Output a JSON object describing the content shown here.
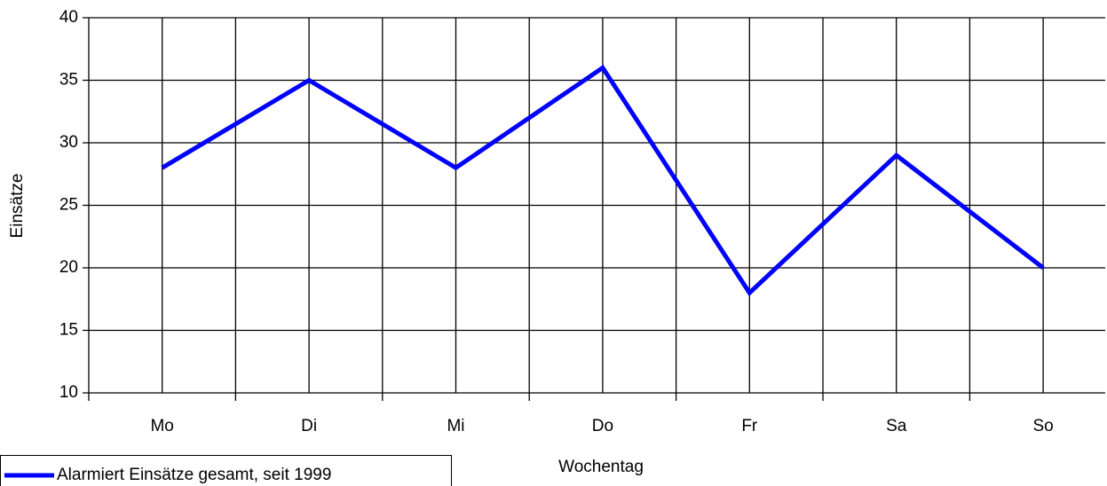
{
  "chart_data": {
    "type": "line",
    "categories": [
      "Mo",
      "Di",
      "Mi",
      "Do",
      "Fr",
      "Sa",
      "So"
    ],
    "series": [
      {
        "name": "Alarmiert Einsätze gesamt, seit 1999",
        "color": "#0000ff",
        "values": [
          28,
          35,
          28,
          36,
          18,
          29,
          20
        ]
      }
    ],
    "x_label": "Wochentag",
    "y_label": "Einsätze",
    "ylim": [
      10,
      40
    ],
    "yticks": [
      10,
      15,
      20,
      25,
      30,
      35,
      40
    ],
    "grid": true,
    "legend": "bottom-left"
  }
}
